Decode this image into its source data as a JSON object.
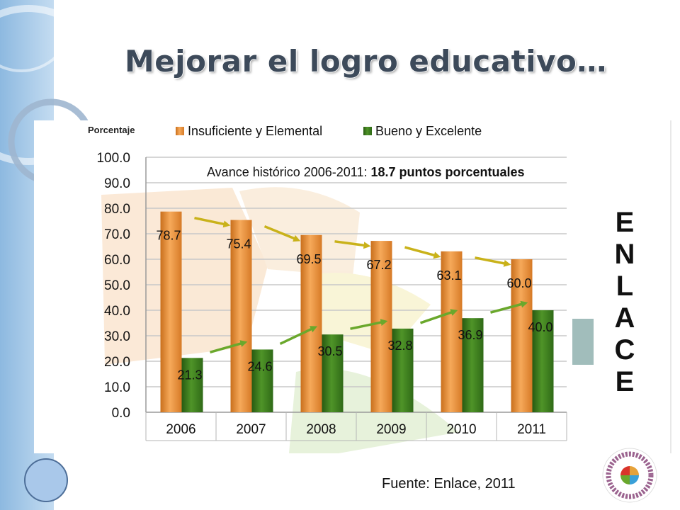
{
  "slide": {
    "title": "Mejorar el logro educativo…",
    "source": "Fuente: Enlace, 2011",
    "side_word": [
      "E",
      "N",
      "L",
      "A",
      "C",
      "E"
    ],
    "logo_text": "Reforma Integral de la Educación Básica"
  },
  "chart_data": {
    "type": "bar",
    "ylabel": "Porcentaje",
    "categories": [
      "2006",
      "2007",
      "2008",
      "2009",
      "2010",
      "2011"
    ],
    "series": [
      {
        "name": "Insuficiente y Elemental",
        "values": [
          78.7,
          75.4,
          69.5,
          67.2,
          63.1,
          60.0
        ],
        "labels": [
          "78.7",
          "75.4",
          "69.5",
          "67.2",
          "63.1",
          "60.0"
        ],
        "color": "#e8913a"
      },
      {
        "name": "Bueno y Excelente",
        "values": [
          21.3,
          24.6,
          30.5,
          32.8,
          36.9,
          40.0
        ],
        "labels": [
          "21.3",
          "24.6",
          "30.5",
          "32.8",
          "36.9",
          "40.0"
        ],
        "color": "#3e7d1e"
      }
    ],
    "annotation": {
      "prefix": "Avance histórico 2006-2011: ",
      "highlight": "18.7 puntos porcentuales"
    },
    "ylim": [
      0,
      100
    ],
    "yticks": [
      "0.0",
      "10.0",
      "20.0",
      "30.0",
      "40.0",
      "50.0",
      "60.0",
      "70.0",
      "80.0",
      "90.0",
      "100.0"
    ],
    "grid": true,
    "legend": "top"
  },
  "colors": {
    "title": "#3d4a5a",
    "sidebar": "#a9cbe8",
    "trend_arrow_orange_series": "#c9b21a",
    "trend_arrow_green_series": "#6aa82c"
  }
}
